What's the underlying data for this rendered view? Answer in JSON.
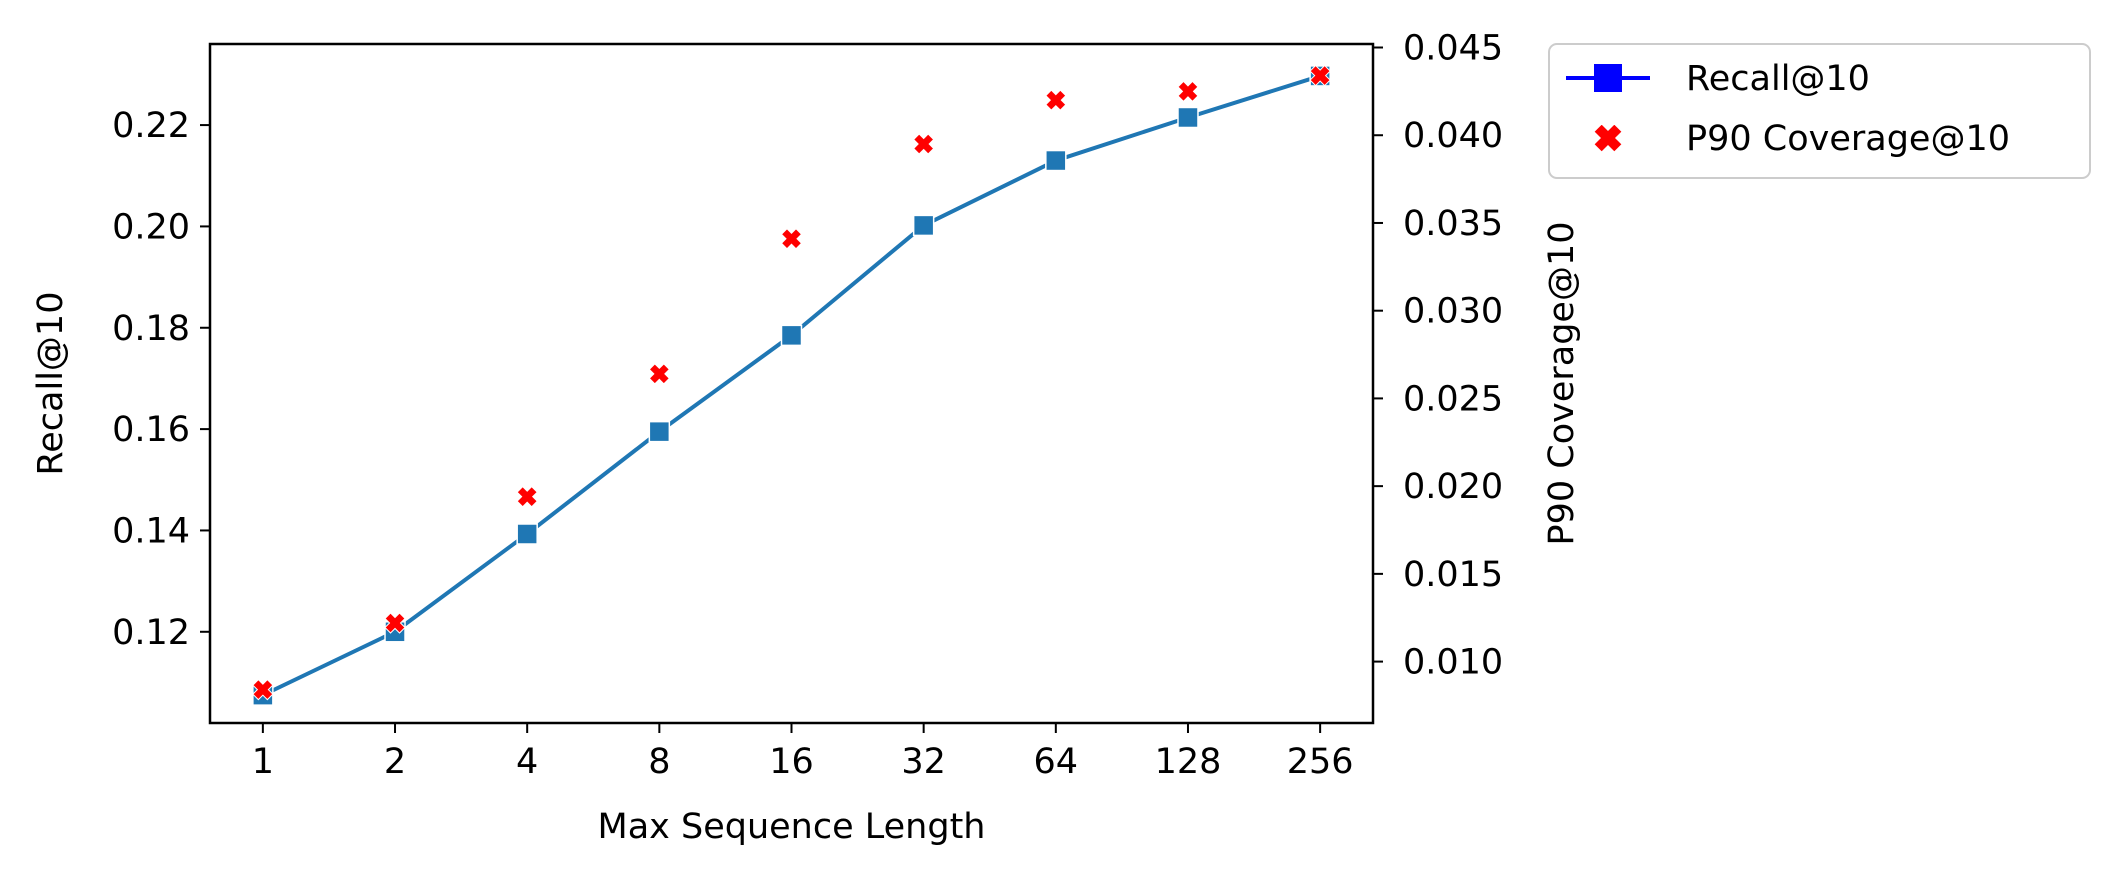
{
  "chart_data": {
    "type": "line",
    "x": [
      1,
      2,
      4,
      8,
      16,
      32,
      64,
      128,
      256
    ],
    "x_scale": "log2",
    "xlabel": "Max Sequence Length",
    "ylabel": "Recall@10",
    "y2label": "P90 Coverage@10",
    "ylim": [
      0.102,
      0.236
    ],
    "y2lim": [
      0.0065,
      0.0452
    ],
    "yticks": [
      0.12,
      0.14,
      0.16,
      0.18,
      0.2,
      0.22
    ],
    "yticklabels": [
      "0.12",
      "0.14",
      "0.16",
      "0.18",
      "0.20",
      "0.22"
    ],
    "y2ticks": [
      0.01,
      0.015,
      0.02,
      0.025,
      0.03,
      0.035,
      0.04,
      0.045
    ],
    "y2ticklabels": [
      "0.010",
      "0.015",
      "0.020",
      "0.025",
      "0.030",
      "0.035",
      "0.040",
      "0.045"
    ],
    "xticklabels": [
      "1",
      "2",
      "4",
      "8",
      "16",
      "32",
      "64",
      "128",
      "256"
    ],
    "grid": false,
    "legend_position": "outside-top-right",
    "series": [
      {
        "name": "Recall@10",
        "axis": "left",
        "marker": "square",
        "line_color": "#1f77b4",
        "legend_color": "#0000ff",
        "values": [
          0.1075,
          0.12,
          0.1393,
          0.1595,
          0.1785,
          0.2002,
          0.213,
          0.2215,
          0.2297
        ]
      },
      {
        "name": "P90 Coverage@10",
        "axis": "right",
        "marker": "x",
        "color": "#ff0000",
        "values": [
          0.0084,
          0.0122,
          0.0194,
          0.0264,
          0.0341,
          0.0395,
          0.042,
          0.0425,
          0.0434
        ]
      }
    ]
  }
}
